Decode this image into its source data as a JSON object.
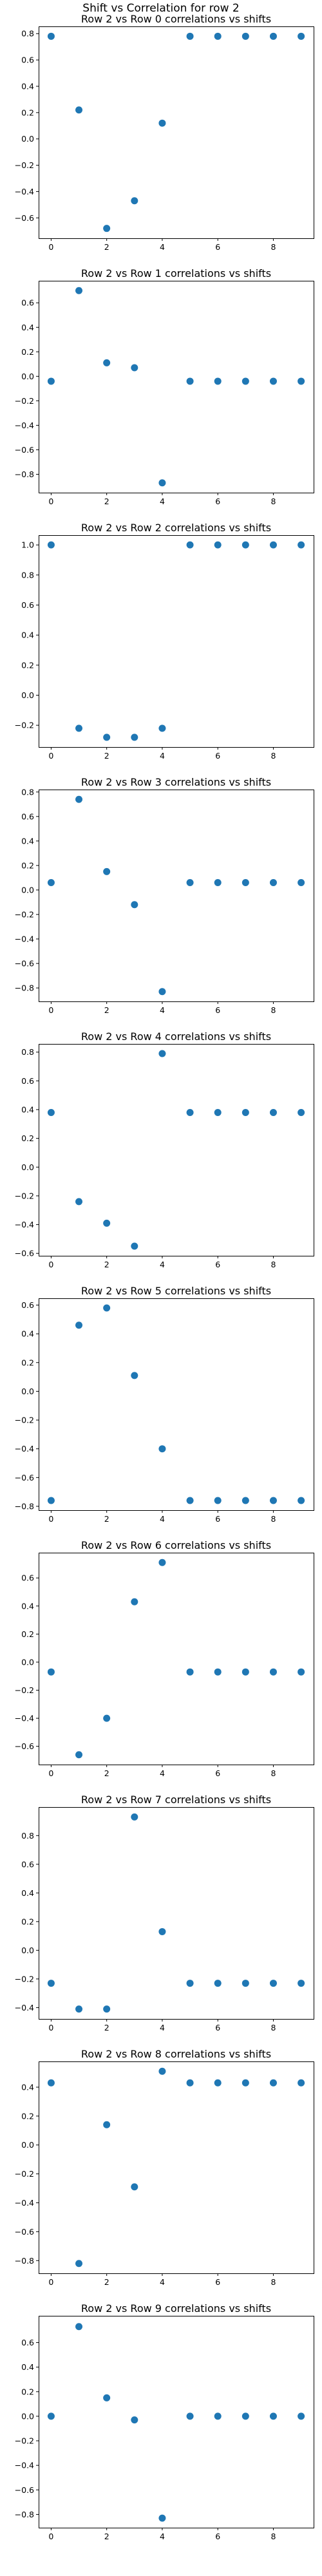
{
  "figure": {
    "suptitle": "Shift vs Correlation for row 2"
  },
  "style": {
    "marker_color": "#1f77b4",
    "background": "#ffffff",
    "axis_color": "#000000"
  },
  "chart_data": [
    {
      "type": "scatter",
      "title": "Row 2 vs Row 0 correlations vs shifts",
      "xlabel": "",
      "ylabel": "",
      "x": [
        0,
        1,
        2,
        3,
        4,
        5,
        6,
        7,
        8,
        9
      ],
      "y": [
        0.78,
        0.22,
        -0.68,
        -0.47,
        0.12,
        0.78,
        0.78,
        0.78,
        0.78,
        0.78
      ],
      "xlim": [
        -0.45,
        9.45
      ],
      "ylim": [
        -0.755,
        0.855
      ],
      "xticks": [
        0,
        2,
        4,
        6,
        8
      ],
      "yticks": [
        -0.6,
        -0.4,
        -0.2,
        0.0,
        0.2,
        0.4,
        0.6,
        0.8
      ],
      "ytick_labels": [
        "−0.6",
        "−0.4",
        "−0.2",
        "0.0",
        "0.2",
        "0.4",
        "0.6",
        "0.8"
      ],
      "grid": false,
      "legend": false
    },
    {
      "type": "scatter",
      "title": "Row 2 vs Row 1 correlations vs shifts",
      "xlabel": "",
      "ylabel": "",
      "x": [
        0,
        1,
        2,
        3,
        4,
        5,
        6,
        7,
        8,
        9
      ],
      "y": [
        -0.04,
        0.7,
        0.11,
        0.07,
        -0.87,
        -0.04,
        -0.04,
        -0.04,
        -0.04,
        -0.04
      ],
      "xlim": [
        -0.45,
        9.45
      ],
      "ylim": [
        -0.95,
        0.78
      ],
      "xticks": [
        0,
        2,
        4,
        6,
        8
      ],
      "yticks": [
        -0.8,
        -0.6,
        -0.4,
        -0.2,
        0.0,
        0.2,
        0.4,
        0.6
      ],
      "ytick_labels": [
        "−0.8",
        "−0.6",
        "−0.4",
        "−0.2",
        "0.0",
        "0.2",
        "0.4",
        "0.6"
      ],
      "grid": false,
      "legend": false
    },
    {
      "type": "scatter",
      "title": "Row 2 vs Row 2 correlations vs shifts",
      "xlabel": "",
      "ylabel": "",
      "x": [
        0,
        1,
        2,
        3,
        4,
        5,
        6,
        7,
        8,
        9
      ],
      "y": [
        1.0,
        -0.22,
        -0.28,
        -0.28,
        -0.22,
        1.0,
        1.0,
        1.0,
        1.0,
        1.0
      ],
      "xlim": [
        -0.45,
        9.45
      ],
      "ylim": [
        -0.345,
        1.065
      ],
      "xticks": [
        0,
        2,
        4,
        6,
        8
      ],
      "yticks": [
        -0.2,
        0.0,
        0.2,
        0.4,
        0.6,
        0.8,
        1.0
      ],
      "ytick_labels": [
        "−0.2",
        "0.0",
        "0.2",
        "0.4",
        "0.6",
        "0.8",
        "1.0"
      ],
      "grid": false,
      "legend": false
    },
    {
      "type": "scatter",
      "title": "Row 2 vs Row 3 correlations vs shifts",
      "xlabel": "",
      "ylabel": "",
      "x": [
        0,
        1,
        2,
        3,
        4,
        5,
        6,
        7,
        8,
        9
      ],
      "y": [
        0.06,
        0.74,
        0.15,
        -0.12,
        -0.83,
        0.06,
        0.06,
        0.06,
        0.06,
        0.06
      ],
      "xlim": [
        -0.45,
        9.45
      ],
      "ylim": [
        -0.91,
        0.82
      ],
      "xticks": [
        0,
        2,
        4,
        6,
        8
      ],
      "yticks": [
        -0.8,
        -0.6,
        -0.4,
        -0.2,
        0.0,
        0.2,
        0.4,
        0.6,
        0.8
      ],
      "ytick_labels": [
        "−0.8",
        "−0.6",
        "−0.4",
        "−0.2",
        "0.0",
        "0.2",
        "0.4",
        "0.6",
        "0.8"
      ],
      "grid": false,
      "legend": false
    },
    {
      "type": "scatter",
      "title": "Row 2 vs Row 4 correlations vs shifts",
      "xlabel": "",
      "ylabel": "",
      "x": [
        0,
        1,
        2,
        3,
        4,
        5,
        6,
        7,
        8,
        9
      ],
      "y": [
        0.38,
        -0.24,
        -0.39,
        -0.55,
        0.79,
        0.38,
        0.38,
        0.38,
        0.38,
        0.38
      ],
      "xlim": [
        -0.45,
        9.45
      ],
      "ylim": [
        -0.617,
        0.857
      ],
      "xticks": [
        0,
        2,
        4,
        6,
        8
      ],
      "yticks": [
        -0.6,
        -0.4,
        -0.2,
        0.0,
        0.2,
        0.4,
        0.6,
        0.8
      ],
      "ytick_labels": [
        "−0.6",
        "−0.4",
        "−0.2",
        "0.0",
        "0.2",
        "0.4",
        "0.6",
        "0.8"
      ],
      "grid": false,
      "legend": false
    },
    {
      "type": "scatter",
      "title": "Row 2 vs Row 5 correlations vs shifts",
      "xlabel": "",
      "ylabel": "",
      "x": [
        0,
        1,
        2,
        3,
        4,
        5,
        6,
        7,
        8,
        9
      ],
      "y": [
        -0.76,
        0.46,
        0.58,
        0.11,
        -0.4,
        -0.76,
        -0.76,
        -0.76,
        -0.76,
        -0.76
      ],
      "xlim": [
        -0.45,
        9.45
      ],
      "ylim": [
        -0.827,
        0.647
      ],
      "xticks": [
        0,
        2,
        4,
        6,
        8
      ],
      "yticks": [
        -0.8,
        -0.6,
        -0.4,
        -0.2,
        0.0,
        0.2,
        0.4,
        0.6
      ],
      "ytick_labels": [
        "−0.8",
        "−0.6",
        "−0.4",
        "−0.2",
        "0.0",
        "0.2",
        "0.4",
        "0.6"
      ],
      "grid": false,
      "legend": false
    },
    {
      "type": "scatter",
      "title": "Row 2 vs Row 6 correlations vs shifts",
      "xlabel": "",
      "ylabel": "",
      "x": [
        0,
        1,
        2,
        3,
        4,
        5,
        6,
        7,
        8,
        9
      ],
      "y": [
        -0.07,
        -0.66,
        -0.4,
        0.43,
        0.71,
        -0.07,
        -0.07,
        -0.07,
        -0.07,
        -0.07
      ],
      "xlim": [
        -0.45,
        9.45
      ],
      "ylim": [
        -0.73,
        0.78
      ],
      "xticks": [
        0,
        2,
        4,
        6,
        8
      ],
      "yticks": [
        -0.6,
        -0.4,
        -0.2,
        0.0,
        0.2,
        0.4,
        0.6
      ],
      "ytick_labels": [
        "−0.6",
        "−0.4",
        "−0.2",
        "0.0",
        "0.2",
        "0.4",
        "0.6"
      ],
      "grid": false,
      "legend": false
    },
    {
      "type": "scatter",
      "title": "Row 2 vs Row 7 correlations vs shifts",
      "xlabel": "",
      "ylabel": "",
      "x": [
        0,
        1,
        2,
        3,
        4,
        5,
        6,
        7,
        8,
        9
      ],
      "y": [
        -0.23,
        -0.41,
        -0.41,
        0.93,
        0.13,
        -0.23,
        -0.23,
        -0.23,
        -0.23,
        -0.23
      ],
      "xlim": [
        -0.45,
        9.45
      ],
      "ylim": [
        -0.479,
        0.999
      ],
      "xticks": [
        0,
        2,
        4,
        6,
        8
      ],
      "yticks": [
        -0.4,
        -0.2,
        0.0,
        0.2,
        0.4,
        0.6,
        0.8
      ],
      "ytick_labels": [
        "−0.4",
        "−0.2",
        "0.0",
        "0.2",
        "0.4",
        "0.6",
        "0.8"
      ],
      "grid": false,
      "legend": false
    },
    {
      "type": "scatter",
      "title": "Row 2 vs Row 8 correlations vs shifts",
      "xlabel": "",
      "ylabel": "",
      "x": [
        0,
        1,
        2,
        3,
        4,
        5,
        6,
        7,
        8,
        9
      ],
      "y": [
        0.43,
        -0.82,
        0.14,
        -0.29,
        0.51,
        0.43,
        0.43,
        0.43,
        0.43,
        0.43
      ],
      "xlim": [
        -0.45,
        9.45
      ],
      "ylim": [
        -0.888,
        0.578
      ],
      "xticks": [
        0,
        2,
        4,
        6,
        8
      ],
      "yticks": [
        -0.8,
        -0.6,
        -0.4,
        -0.2,
        0.0,
        0.2,
        0.4
      ],
      "ytick_labels": [
        "−0.8",
        "−0.6",
        "−0.4",
        "−0.2",
        "0.0",
        "0.2",
        "0.4"
      ],
      "grid": false,
      "legend": false
    },
    {
      "type": "scatter",
      "title": "Row 2 vs Row 9 correlations vs shifts",
      "xlabel": "",
      "ylabel": "",
      "x": [
        0,
        1,
        2,
        3,
        4,
        5,
        6,
        7,
        8,
        9
      ],
      "y": [
        0.0,
        0.73,
        0.15,
        -0.03,
        -0.83,
        0.0,
        0.0,
        0.0,
        0.0,
        0.0
      ],
      "xlim": [
        -0.45,
        9.45
      ],
      "ylim": [
        -0.908,
        0.818
      ],
      "xticks": [
        0,
        2,
        4,
        6,
        8
      ],
      "yticks": [
        -0.8,
        -0.6,
        -0.4,
        -0.2,
        0.0,
        0.2,
        0.4,
        0.6
      ],
      "ytick_labels": [
        "−0.8",
        "−0.6",
        "−0.4",
        "−0.2",
        "0.0",
        "0.2",
        "0.4",
        "0.6"
      ],
      "grid": false,
      "legend": false
    }
  ]
}
